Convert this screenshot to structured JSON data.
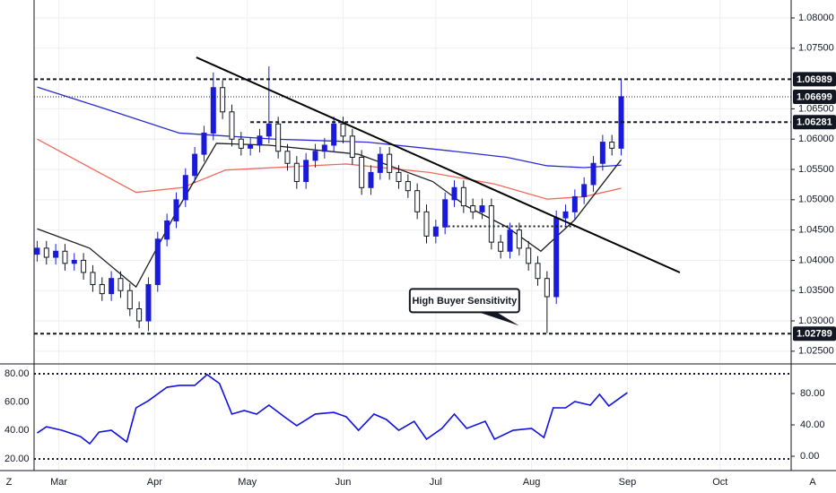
{
  "toolbar": {
    "left": "Z",
    "right": "A"
  },
  "chart_data": [
    {
      "type": "candlestick",
      "up_color": "#1a1adb",
      "down_color": "#ffffff",
      "outline_color": "#131722",
      "ylim": [
        1.02305,
        1.08296
      ],
      "yticks": [
        {
          "value": 1.08,
          "label": "1.08000"
        },
        {
          "value": 1.075,
          "label": "1.07500"
        },
        {
          "value": 1.065,
          "label": "1.06500"
        },
        {
          "value": 1.06,
          "label": "1.06000"
        },
        {
          "value": 1.055,
          "label": "1.05500"
        },
        {
          "value": 1.05,
          "label": "1.05000"
        },
        {
          "value": 1.045,
          "label": "1.04500"
        },
        {
          "value": 1.04,
          "label": "1.04000"
        },
        {
          "value": 1.035,
          "label": "1.03500"
        },
        {
          "value": 1.03,
          "label": "1.03000"
        },
        {
          "value": 1.025,
          "label": "1.02500"
        }
      ],
      "grid": true,
      "xlim": [
        52,
        297
      ],
      "x": [
        53,
        56,
        59,
        62,
        65,
        68,
        71,
        74,
        77,
        80,
        83,
        86,
        89,
        92,
        95,
        98,
        101,
        104,
        107,
        110,
        113,
        116,
        119,
        122,
        125,
        128,
        131,
        134,
        137,
        140,
        143,
        146,
        149,
        152,
        155,
        158,
        161,
        164,
        167,
        170,
        173,
        176,
        179,
        182,
        185,
        188,
        191,
        194,
        197,
        200,
        203,
        206,
        209,
        212,
        215,
        218,
        221,
        224,
        227,
        230,
        233,
        236,
        239,
        242
      ],
      "open": [
        1.041,
        1.042,
        1.0405,
        1.0415,
        1.0395,
        1.04,
        1.038,
        1.036,
        1.0345,
        1.037,
        1.035,
        1.032,
        1.03,
        1.036,
        1.0435,
        1.0465,
        1.05,
        1.054,
        1.0575,
        1.061,
        1.0685,
        1.0645,
        1.06,
        1.0585,
        1.059,
        1.0605,
        1.0625,
        1.058,
        1.056,
        1.053,
        1.0565,
        1.058,
        1.059,
        1.0625,
        1.0605,
        1.057,
        1.052,
        1.0545,
        1.0575,
        1.0545,
        1.053,
        1.0515,
        1.048,
        1.044,
        1.0455,
        1.05,
        1.052,
        1.049,
        1.048,
        1.049,
        1.043,
        1.0415,
        1.045,
        1.042,
        1.0395,
        1.037,
        1.034,
        1.047,
        1.048,
        1.0505,
        1.0525,
        1.056,
        1.0595,
        1.0585
      ],
      "high": [
        1.0432,
        1.0432,
        1.0427,
        1.0427,
        1.0412,
        1.0412,
        1.0392,
        1.0372,
        1.0382,
        1.0382,
        1.0362,
        1.0332,
        1.0372,
        1.0447,
        1.0477,
        1.0512,
        1.0552,
        1.0587,
        1.0622,
        1.071,
        1.0697,
        1.0657,
        1.0612,
        1.0602,
        1.0617,
        1.072,
        1.0637,
        1.0592,
        1.0572,
        1.0577,
        1.0592,
        1.0602,
        1.0637,
        1.0637,
        1.0617,
        1.0582,
        1.0557,
        1.0587,
        1.0587,
        1.0557,
        1.0542,
        1.0527,
        1.0492,
        1.0467,
        1.0512,
        1.0532,
        1.0532,
        1.0502,
        1.0502,
        1.0502,
        1.0442,
        1.0462,
        1.0462,
        1.0432,
        1.0407,
        1.0382,
        1.0482,
        1.0492,
        1.0517,
        1.0537,
        1.0572,
        1.0607,
        1.0607,
        1.0699
      ],
      "low": [
        1.0398,
        1.0393,
        1.0393,
        1.0383,
        1.0383,
        1.0368,
        1.0348,
        1.0333,
        1.0333,
        1.0338,
        1.0308,
        1.0288,
        1.0283,
        1.0348,
        1.0423,
        1.0453,
        1.0488,
        1.0528,
        1.0563,
        1.0598,
        1.0633,
        1.0588,
        1.0573,
        1.0573,
        1.0578,
        1.0593,
        1.0568,
        1.0548,
        1.0518,
        1.0518,
        1.0553,
        1.0568,
        1.0578,
        1.0593,
        1.0558,
        1.0508,
        1.0508,
        1.0533,
        1.0533,
        1.0518,
        1.0503,
        1.0468,
        1.0428,
        1.0428,
        1.0443,
        1.0488,
        1.0478,
        1.0468,
        1.0468,
        1.0418,
        1.0403,
        1.0403,
        1.0408,
        1.0383,
        1.0358,
        1.028,
        1.0328,
        1.0458,
        1.0468,
        1.0493,
        1.0513,
        1.0548,
        1.0573,
        1.0573
      ],
      "close": [
        1.042,
        1.0405,
        1.0415,
        1.0395,
        1.04,
        1.038,
        1.036,
        1.0345,
        1.037,
        1.035,
        1.032,
        1.03,
        1.036,
        1.0435,
        1.0465,
        1.05,
        1.054,
        1.0575,
        1.061,
        1.0685,
        1.0645,
        1.06,
        1.0585,
        1.059,
        1.0605,
        1.0625,
        1.058,
        1.056,
        1.053,
        1.0565,
        1.058,
        1.059,
        1.0625,
        1.0605,
        1.057,
        1.052,
        1.0545,
        1.0575,
        1.0545,
        1.053,
        1.0515,
        1.048,
        1.044,
        1.0455,
        1.05,
        1.052,
        1.049,
        1.048,
        1.049,
        1.043,
        1.0415,
        1.045,
        1.042,
        1.0395,
        1.037,
        1.034,
        1.047,
        1.048,
        1.0505,
        1.0525,
        1.056,
        1.0595,
        1.0585,
        1.067
      ],
      "moving_averages": [
        {
          "color": "#2a2ad0",
          "x": [
            53,
            75,
            99,
            130,
            160,
            186,
            205,
            218,
            230,
            242
          ],
          "values": [
            1.0686,
            1.065,
            1.061,
            1.06,
            1.0595,
            1.0581,
            1.057,
            1.0556,
            1.0553,
            1.0557
          ]
        },
        {
          "color": "#ef6a5a",
          "x": [
            53,
            85,
            100,
            114,
            153,
            180,
            201,
            218,
            230,
            242
          ],
          "values": [
            1.06,
            1.0512,
            1.052,
            1.0549,
            1.0559,
            1.0545,
            1.0526,
            1.0501,
            1.0505,
            1.0519
          ]
        },
        {
          "color": "#1c1c1c",
          "x": [
            53,
            70,
            85,
            99,
            111,
            128,
            157,
            181,
            192,
            205,
            216,
            227,
            242
          ],
          "values": [
            1.0452,
            1.042,
            1.0356,
            1.0489,
            1.0593,
            1.059,
            1.0575,
            1.053,
            1.0489,
            1.0455,
            1.0415,
            1.0467,
            1.0566
          ]
        }
      ],
      "levels": [
        {
          "value": 1.06989,
          "label": "1.06989",
          "style": "dashed"
        },
        {
          "value": 1.06699,
          "label": "1.06699",
          "style": "dotted"
        },
        {
          "value": 1.06281,
          "label": "1.06281",
          "style": "dashed",
          "x_from": 122
        },
        {
          "value": 1.02789,
          "label": "1.02789",
          "style": "dashed"
        }
      ],
      "trendline": {
        "x": [
          104.5,
          261
        ],
        "values": [
          1.07349,
          1.03799
        ]
      },
      "dotted_segment": {
        "x": [
          186,
          227
        ],
        "value": 1.0456
      },
      "annotation": {
        "text": "High Buyer Sensitivity",
        "x": 209,
        "value": 1.0292
      }
    },
    {
      "type": "line",
      "color": "#1010e0",
      "x": [
        53,
        56,
        61,
        67,
        70,
        73,
        77,
        82,
        85,
        89,
        95,
        99,
        104,
        108,
        112,
        116,
        120,
        124,
        128,
        133,
        137,
        143,
        149,
        153,
        157,
        162,
        166,
        170,
        175,
        179,
        184,
        188,
        192,
        198,
        201,
        207,
        213,
        217,
        220,
        224,
        227,
        232,
        235,
        238,
        242,
        244
      ],
      "values": [
        38.3,
        42.7,
        40.2,
        35.8,
        30.7,
        38.9,
        40.2,
        32.0,
        56.0,
        61.0,
        70.5,
        71.8,
        71.8,
        79.4,
        73.1,
        51.6,
        54.1,
        51.6,
        57.9,
        49.7,
        43.4,
        51.6,
        52.8,
        49.7,
        40.2,
        51.6,
        47.8,
        40.2,
        46.5,
        33.9,
        41.5,
        51.6,
        41.5,
        46.5,
        33.9,
        40.2,
        41.5,
        35.1,
        56.0,
        56.0,
        60.4,
        57.9,
        65.5,
        57.3,
        63.6,
        66.7
      ],
      "ylim": [
        11.8,
        86.3
      ],
      "yticks": [
        {
          "value": 80,
          "label": "80.00"
        },
        {
          "value": 60,
          "label": "60.00"
        },
        {
          "value": 40,
          "label": "40.00"
        },
        {
          "value": 20,
          "label": "20.00"
        }
      ],
      "y2lim": [
        -18.3,
        116.6
      ],
      "y2ticks": [
        {
          "value": 80,
          "label": "80.00"
        },
        {
          "value": 40,
          "label": "40.00"
        },
        {
          "value": 0,
          "label": "0.00"
        }
      ],
      "xlim": [
        52,
        297
      ],
      "xticks": [
        {
          "value": 60,
          "label": "Mar"
        },
        {
          "value": 91,
          "label": "Apr"
        },
        {
          "value": 121,
          "label": "May"
        },
        {
          "value": 152,
          "label": "Jun"
        },
        {
          "value": 182,
          "label": "Jul"
        },
        {
          "value": 213,
          "label": "Aug"
        },
        {
          "value": 244,
          "label": "Sep"
        },
        {
          "value": 274,
          "label": "Oct"
        }
      ]
    }
  ]
}
